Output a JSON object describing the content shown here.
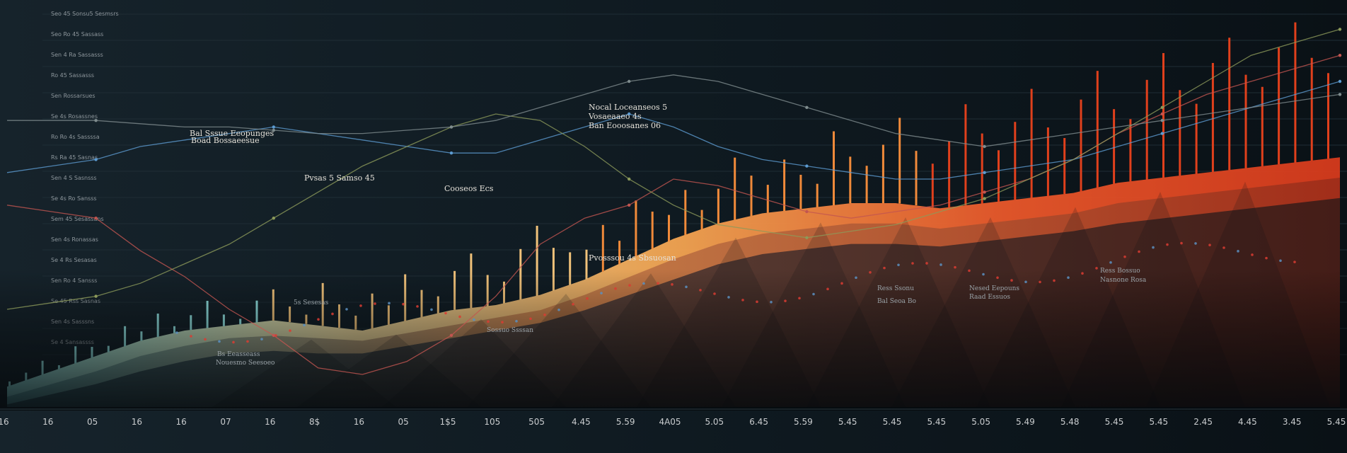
{
  "chart_data": {
    "type": "area",
    "title": "",
    "xlabel": "",
    "ylabel": "",
    "grid": true,
    "x_tick_labels": [
      "16",
      "16",
      "05",
      "16",
      "16",
      "07",
      "16",
      "8$",
      "16",
      "05",
      "1$5",
      "105",
      "505",
      "4.45",
      "5.59",
      "4A05",
      "5.05",
      "6.45",
      "5.59",
      "5.45",
      "5.45",
      "5.45",
      "5.05",
      "5.49",
      "5.48",
      "5.45",
      "5.45",
      "2.45",
      "4.45",
      "3.45",
      "5.45"
    ],
    "x": [
      0,
      1,
      2,
      3,
      4,
      5,
      6,
      7,
      8,
      9,
      10,
      11,
      12,
      13,
      14,
      15,
      16,
      17,
      18,
      19,
      20,
      21,
      22,
      23,
      24,
      25,
      26,
      27,
      28,
      29,
      30
    ],
    "series": [
      {
        "values": [
          8,
          14,
          20,
          26,
          30,
          32,
          34,
          32,
          30,
          34,
          38,
          40,
          44,
          50,
          58,
          66,
          72,
          76,
          78,
          80,
          80,
          78,
          80,
          82,
          84,
          88,
          90,
          92,
          94,
          96,
          98
        ],
        "color_top": "#8ee0e0",
        "color_bottom": "#f4a14e"
      },
      {
        "values": [
          4,
          9,
          14,
          20,
          24,
          27,
          28,
          27,
          26,
          29,
          32,
          35,
          38,
          44,
          51,
          58,
          64,
          68,
          70,
          72,
          72,
          70,
          72,
          74,
          76,
          80,
          82,
          84,
          86,
          88,
          90
        ],
        "color_top": "#5aa7b0",
        "color_bottom": "#c56a3e"
      },
      {
        "values": [
          1,
          5,
          9,
          14,
          18,
          21,
          22,
          21,
          21,
          24,
          27,
          30,
          33,
          38,
          44,
          50,
          56,
          60,
          62,
          64,
          64,
          63,
          65,
          67,
          69,
          72,
          74,
          76,
          78,
          80,
          82
        ],
        "color_top": "#35606e",
        "color_bottom": "#7d3a2e"
      }
    ],
    "spikes": [
      6,
      10,
      18,
      5,
      22,
      14,
      8,
      26,
      12,
      30,
      9,
      19,
      35,
      15,
      7,
      28,
      40,
      20,
      12,
      55,
      30,
      18,
      45,
      25,
      60,
      35,
      22,
      50,
      70,
      40,
      28,
      65,
      90,
      55,
      42,
      38,
      60,
      30,
      72,
      48,
      34,
      58,
      25,
      45,
      80,
      52,
      36,
      66,
      44,
      30,
      95,
      60,
      48,
      75,
      110,
      70,
      56,
      85,
      130,
      90,
      66,
      100,
      140,
      88,
      72,
      118,
      150,
      96,
      80,
      128,
      160,
      110,
      90,
      140,
      170,
      120,
      102,
      150,
      180,
      132,
      110
    ],
    "lines": [
      {
        "color": "#c25550",
        "values": [
          62,
          60,
          58,
          48,
          40,
          30,
          22,
          12,
          10,
          14,
          22,
          34,
          50,
          58,
          62,
          70,
          68,
          64,
          60,
          58,
          60,
          62,
          66,
          70,
          76,
          84,
          90,
          96,
          100,
          104,
          108
        ]
      },
      {
        "color": "#5c9bd1",
        "values": [
          72,
          74,
          76,
          80,
          82,
          84,
          86,
          84,
          82,
          80,
          78,
          78,
          82,
          86,
          90,
          86,
          80,
          76,
          74,
          72,
          70,
          70,
          72,
          74,
          76,
          80,
          84,
          88,
          92,
          96,
          100
        ]
      },
      {
        "color": "#8c9a5a",
        "values": [
          30,
          32,
          34,
          38,
          44,
          50,
          58,
          66,
          74,
          80,
          86,
          90,
          88,
          80,
          70,
          62,
          56,
          54,
          52,
          54,
          56,
          60,
          64,
          70,
          76,
          84,
          92,
          100,
          108,
          112,
          116
        ]
      },
      {
        "color": "#7f8c8e",
        "values": [
          88,
          88,
          88,
          87,
          86,
          86,
          85,
          84,
          84,
          85,
          86,
          88,
          92,
          96,
          100,
          102,
          100,
          96,
          92,
          88,
          84,
          82,
          80,
          82,
          84,
          86,
          88,
          90,
          92,
          94,
          96
        ]
      }
    ],
    "y_side_labels": [
      "Seo 45 Sonsu5 Sesmsrs",
      "Seo Ro 45 Sassass",
      "Sen 4 Ra Sassasss",
      "Ro 45 Sassasss",
      "Sen Rossarsues",
      "Se 4s Rosassnes",
      "Ro Ro 4s Sassssa",
      "Rs Ra 45 Sasnas",
      "Sen 4 S Sasnsss",
      "Se 4s Ro Sansss",
      "Sem 45 Sesassans",
      "Sen 4s Ronassas",
      "Se 4 Rs Sesasas",
      "Sen Ro 4 Sansss",
      "Se 45 Rss Sasnas",
      "Sen 4s Sasssns",
      "Se 4 Sansassss"
    ],
    "annotations": [
      "Nocal Loceanseos 5",
      "Vosaeaaeo 4s",
      "Ban Eooosanes 06",
      "Bal Sssue Eeopunges",
      "Boad Bossaeesue",
      "Pvsas 5 Samso 45",
      "Cooseos Ecs",
      "Pvosssou 4s Sbsuosan",
      "5s Sesesas",
      "Bs Eeasseass",
      "Nouesmo Seesoeo",
      "Sossuo Ssssan",
      "Ress Ssonu",
      "Bal Seoa Bo",
      "Nesed Eepouns",
      "Raad Essuos",
      "Ress Bossuo",
      "Nasnone Rosa"
    ]
  }
}
